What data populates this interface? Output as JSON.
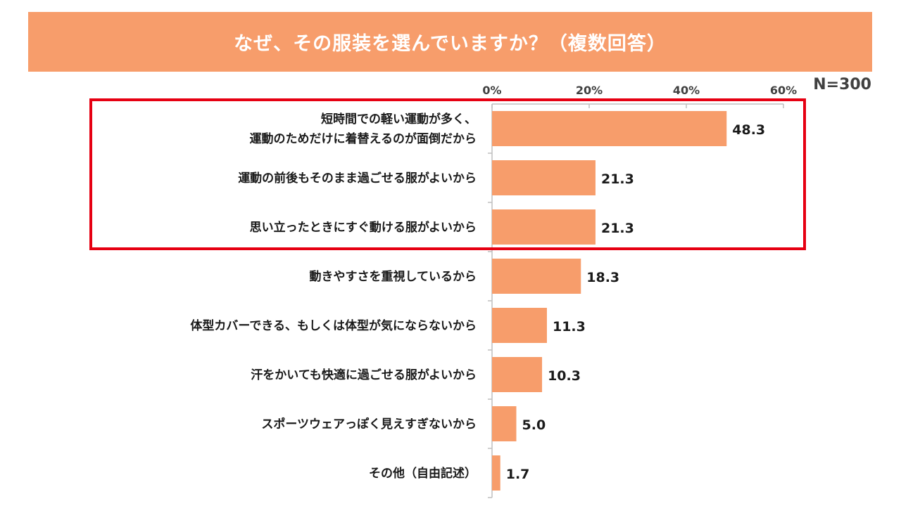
{
  "title": "なぜ、その服装を選んでいますか？（複数回答）",
  "sample_size": "N=300",
  "colors": {
    "banner": "#f79d6b",
    "bar": "#f79d6b",
    "highlight": "#e60012",
    "axis": "#bfbfbf",
    "text": "#1a1a1a"
  },
  "chart_data": {
    "type": "bar",
    "orientation": "horizontal",
    "title": "なぜ、その服装を選んでいますか？（複数回答）",
    "xlabel": "",
    "ylabel": "",
    "xlim": [
      0,
      60
    ],
    "ticks": [
      0,
      20,
      40,
      60
    ],
    "tick_labels": [
      "0%",
      "20%",
      "40%",
      "60%"
    ],
    "categories": [
      [
        "短時間での軽い運動が多く、",
        "運動のためだけに着替えるのが面倒だから"
      ],
      [
        "運動の前後もそのまま過ごせる服がよいから"
      ],
      [
        "思い立ったときにすぐ動ける服がよいから"
      ],
      [
        "動きやすさを重視しているから"
      ],
      [
        "体型カバーできる、もしくは体型が気にならないから"
      ],
      [
        "汗をかいても快適に過ごせる服がよいから"
      ],
      [
        "スポーツウェアっぽく見えすぎないから"
      ],
      [
        "その他（自由記述）"
      ]
    ],
    "values": [
      48.3,
      21.3,
      21.3,
      18.3,
      11.3,
      10.3,
      5.0,
      1.7
    ],
    "value_labels": [
      "48.3",
      "21.3",
      "21.3",
      "18.3",
      "11.3",
      "10.3",
      "5.0",
      "1.7"
    ],
    "highlighted_indices": [
      0,
      1,
      2
    ]
  }
}
